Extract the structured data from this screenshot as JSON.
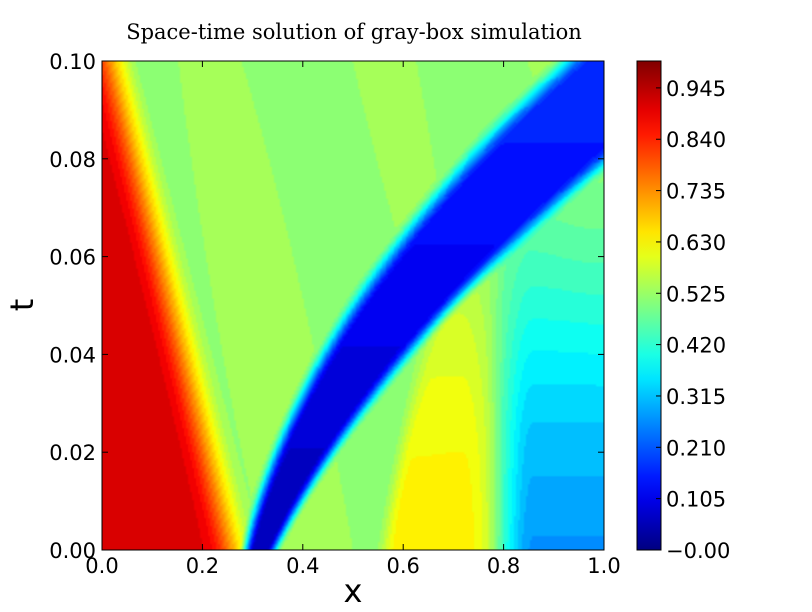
{
  "chart_data": {
    "type": "heatmap",
    "title": "Space-time solution of gray-box simulation",
    "xlabel": "x",
    "ylabel": "t",
    "xlim": [
      0.0,
      1.0
    ],
    "ylim": [
      0.0,
      0.1
    ],
    "x_ticks": [
      "0.0",
      "0.2",
      "0.4",
      "0.6",
      "0.8",
      "1.0"
    ],
    "y_ticks": [
      "0.00",
      "0.02",
      "0.04",
      "0.06",
      "0.08",
      "0.10"
    ],
    "colorbar": {
      "colormap": "jet",
      "range": [
        0.0,
        1.0
      ],
      "ticks": [
        "−0.00",
        "0.105",
        "0.210",
        "0.315",
        "0.420",
        "0.525",
        "0.630",
        "0.735",
        "0.840",
        "0.945"
      ]
    },
    "grid": false,
    "regions": {
      "left_high_value_zone": 0.9,
      "background_value": 0.52,
      "blue_band_value": 0.05,
      "yellow_zone_value": 0.64,
      "right_bottom_value": 0.27
    }
  }
}
